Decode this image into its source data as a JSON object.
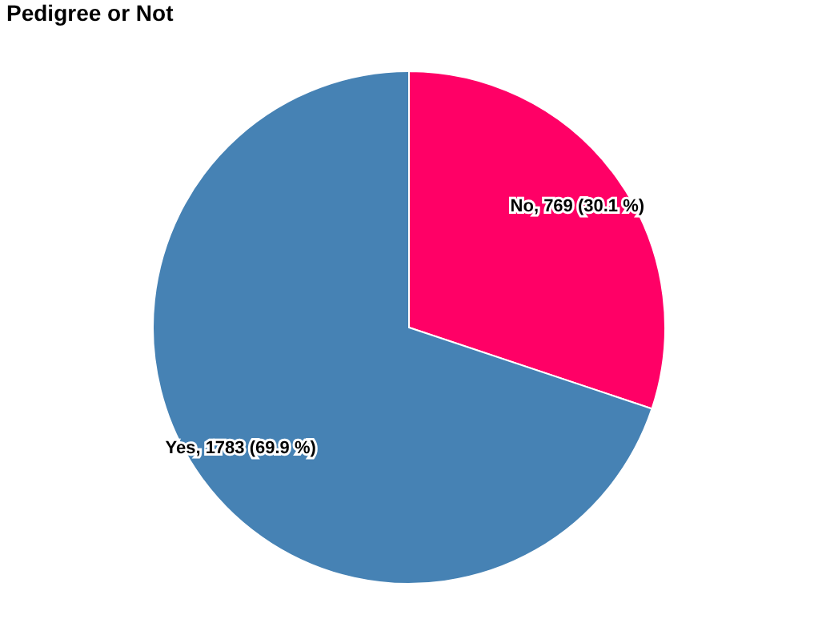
{
  "chart_data": {
    "type": "pie",
    "title": "Pedigree or Not",
    "categories": [
      "No",
      "Yes"
    ],
    "values": [
      769,
      1783
    ],
    "colors": [
      "#ff0066",
      "#4682b4"
    ],
    "value_labels": [
      "769 (30.1 %)",
      "1783 (69.9 %)"
    ],
    "legend": false
  }
}
